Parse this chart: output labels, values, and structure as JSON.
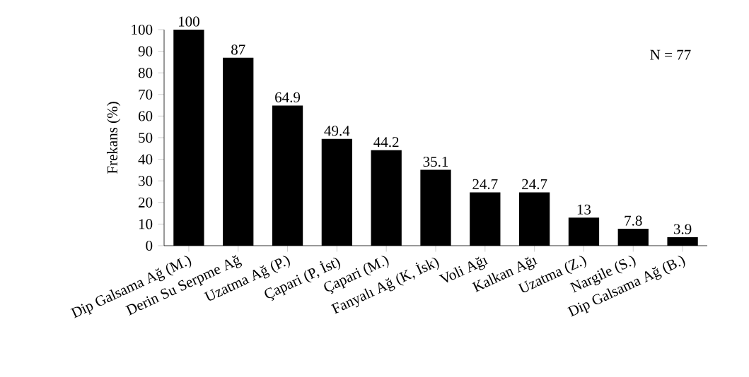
{
  "chart_data": {
    "type": "bar",
    "ylabel": "Frekans (%)",
    "categories": [
      "Dip Galsama Ağ (M.)",
      "Derin Su Serpme Ağ",
      "Uzatma Ağ (P.)",
      "Çapari (P, İst)",
      "Çapari (M.)",
      "Fanyalı Ağ (K, İsk)",
      "Voli Ağı",
      "Kalkan Ağı",
      "Uzatma (Z.)",
      "Nargile (S.)",
      "Dip Galsama Ağ (B.)"
    ],
    "values": [
      100,
      87,
      64.9,
      49.4,
      44.2,
      35.1,
      24.7,
      24.7,
      13,
      7.8,
      3.9
    ],
    "color": "#000000",
    "ylim": [
      0,
      100
    ],
    "yticks": [
      0,
      10,
      20,
      30,
      40,
      50,
      60,
      70,
      80,
      90,
      100
    ],
    "data_labels": true,
    "annotations": [
      "N = 77"
    ]
  }
}
